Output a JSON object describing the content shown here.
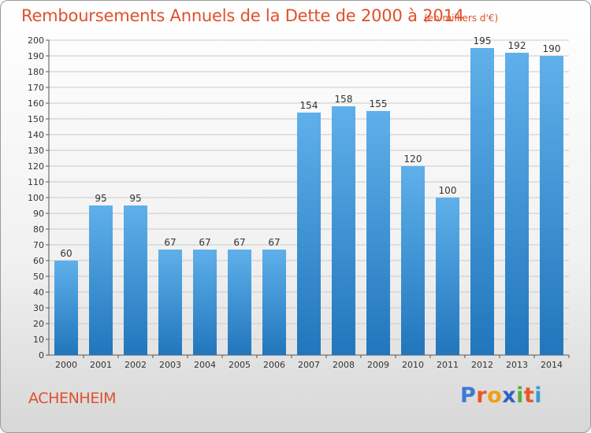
{
  "header": {
    "title": "Remboursements Annuels de la Dette de 2000 à 2014",
    "unit_note": "(en milliers d'€)"
  },
  "footer": {
    "town": "ACHENHEIM",
    "logo": {
      "text": "Proxiti",
      "letters": [
        "P",
        "r",
        "o",
        "x",
        "i",
        "t",
        "i"
      ]
    }
  },
  "colors": {
    "title": "#e0502a",
    "bar_top": "#5fb0ea",
    "bar_bottom": "#2176bc",
    "grid": "#c9c9c9",
    "logo_letters": [
      "#3a7bd5",
      "#e8562a",
      "#f0a012",
      "#2c64c4",
      "#58b03c",
      "#e8562a",
      "#3a9ad5"
    ]
  },
  "chart_data": {
    "type": "bar",
    "title": "Remboursements Annuels de la Dette de 2000 à 2014",
    "subtitle": "(en milliers d'€)",
    "xlabel": "",
    "ylabel": "",
    "categories": [
      "2000",
      "2001",
      "2002",
      "2003",
      "2004",
      "2005",
      "2006",
      "2007",
      "2008",
      "2009",
      "2010",
      "2011",
      "2012",
      "2013",
      "2014"
    ],
    "values": [
      60,
      95,
      95,
      67,
      67,
      67,
      67,
      154,
      158,
      155,
      120,
      100,
      195,
      192,
      190
    ],
    "ylim": [
      0,
      200
    ],
    "ytick_step": 10,
    "grid": true,
    "legend": "none"
  }
}
